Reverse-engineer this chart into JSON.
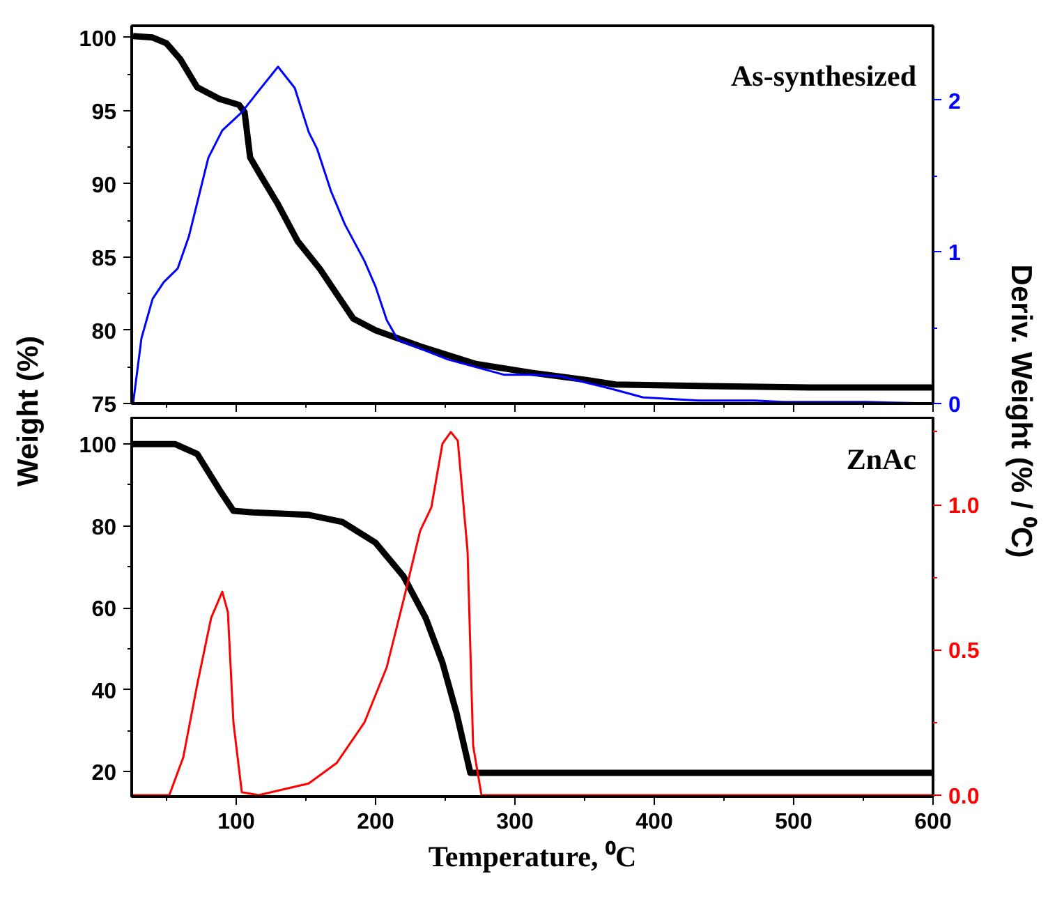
{
  "chart_data": [
    {
      "type": "line",
      "title": "As-synthesized",
      "ylabel": "Weight (%)",
      "y2label": "Deriv. Weight (% / ⁰C)",
      "xlim": [
        25,
        600
      ],
      "xticks": [
        100,
        200,
        300,
        400,
        500,
        600
      ],
      "ylim": [
        75,
        100.8
      ],
      "yticks": [
        75,
        80,
        85,
        90,
        95,
        100
      ],
      "y2lim": [
        0,
        2.49
      ],
      "y2ticks": [
        0,
        1,
        2
      ],
      "tick_labels": "y",
      "grid": false,
      "series": [
        {
          "color": "#000000",
          "x": [
            26,
            40,
            50,
            60,
            72,
            88,
            102,
            106,
            110,
            118,
            130,
            144,
            160,
            172,
            184,
            200,
            232,
            272,
            312,
            352,
            372,
            432,
            512,
            600
          ],
          "values": [
            100.1,
            100,
            99.6,
            98.5,
            96.6,
            95.8,
            95.4,
            94.9,
            91.8,
            90.5,
            88.6,
            86.1,
            84.2,
            82.5,
            80.8,
            80,
            78.9,
            77.7,
            77.1,
            76.6,
            76.3,
            76.2,
            76.1,
            76.1
          ]
        },
        {
          "color": "#0000ff",
          "axis": "y2",
          "x": [
            26,
            32,
            40,
            48,
            58,
            66,
            80,
            90,
            104,
            116,
            130,
            142,
            152,
            158,
            168,
            178,
            192,
            200,
            208,
            216,
            252,
            292,
            312,
            332,
            368,
            392,
            432,
            472,
            492,
            552,
            600
          ],
          "values": [
            0,
            0.43,
            0.69,
            0.8,
            0.89,
            1.1,
            1.62,
            1.8,
            1.92,
            2.06,
            2.22,
            2.08,
            1.79,
            1.68,
            1.4,
            1.18,
            0.94,
            0.77,
            0.55,
            0.42,
            0.29,
            0.19,
            0.19,
            0.18,
            0.1,
            0.04,
            0.02,
            0.02,
            0.01,
            0.01,
            0
          ]
        }
      ]
    },
    {
      "type": "line",
      "title": "ZnAc",
      "xlabel": "Temperature, ⁰C",
      "xlim": [
        25,
        600
      ],
      "xticks": [
        100,
        200,
        300,
        400,
        500,
        600
      ],
      "ylim": [
        13.9,
        106.5
      ],
      "yticks": [
        20,
        40,
        60,
        80,
        100
      ],
      "y2lim": [
        -0.005,
        1.3
      ],
      "y2ticks": [
        {
          "value": 0,
          "label": "0.0"
        },
        {
          "value": 0.5,
          "label": "0.5"
        },
        {
          "value": 1,
          "label": "1.0"
        }
      ],
      "grid": false,
      "series": [
        {
          "color": "#000000",
          "x": [
            26,
            56,
            72,
            88,
            98,
            112,
            152,
            176,
            200,
            220,
            236,
            248,
            258,
            268,
            600
          ],
          "values": [
            100,
            100,
            97.6,
            88.8,
            83.7,
            83.3,
            82.7,
            81,
            75.9,
            67.7,
            57.5,
            46.6,
            34.4,
            19.7,
            19.7
          ]
        },
        {
          "color": "#ff0000",
          "axis": "y2",
          "x": [
            26,
            52,
            62,
            72,
            82,
            90,
            94,
            98,
            104,
            116,
            152,
            172,
            192,
            208,
            220,
            232,
            240,
            248,
            254,
            259,
            266,
            270,
            276,
            600
          ],
          "values": [
            0,
            0,
            0.13,
            0.38,
            0.61,
            0.7,
            0.63,
            0.25,
            0.01,
            0,
            0.04,
            0.11,
            0.25,
            0.44,
            0.67,
            0.91,
            0.99,
            1.21,
            1.25,
            1.22,
            0.84,
            0.17,
            0,
            0
          ]
        }
      ]
    }
  ]
}
